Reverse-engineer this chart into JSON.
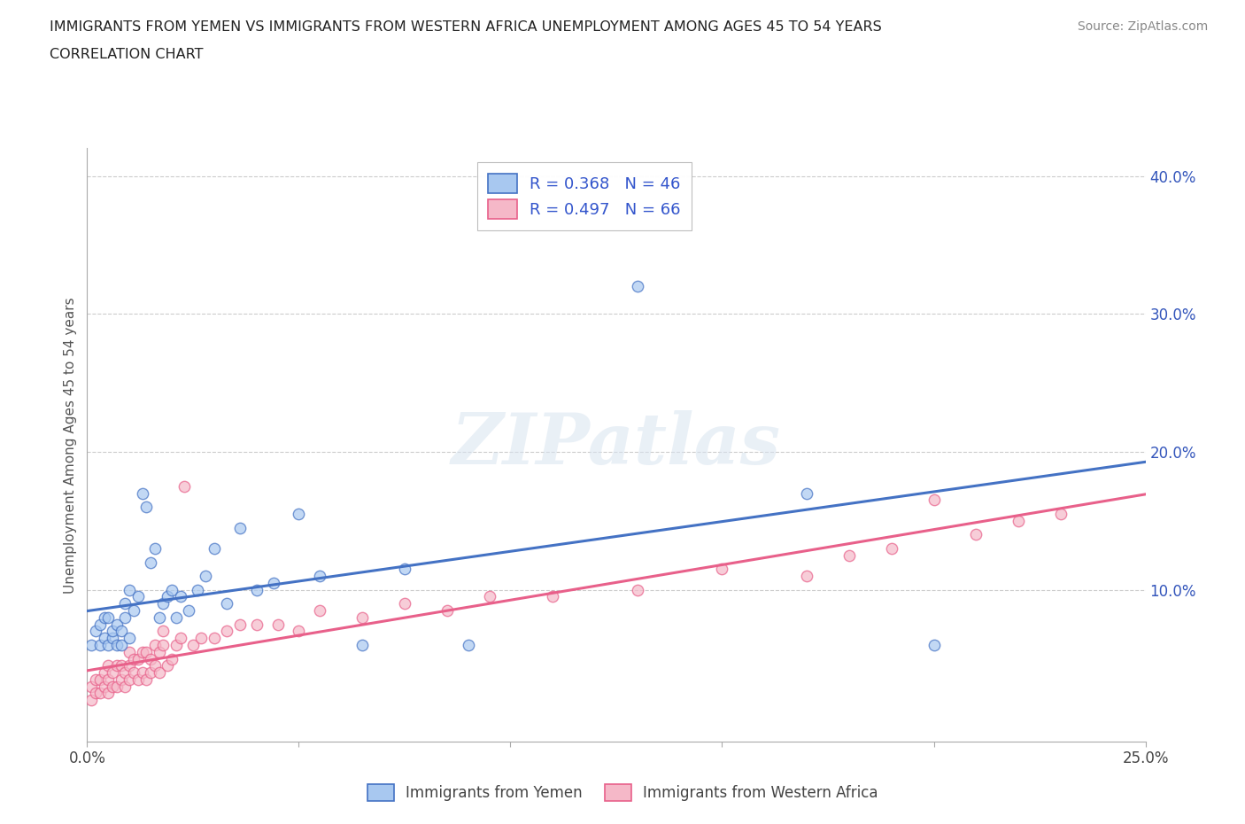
{
  "title_line1": "IMMIGRANTS FROM YEMEN VS IMMIGRANTS FROM WESTERN AFRICA UNEMPLOYMENT AMONG AGES 45 TO 54 YEARS",
  "title_line2": "CORRELATION CHART",
  "source": "Source: ZipAtlas.com",
  "ylabel": "Unemployment Among Ages 45 to 54 years",
  "xlim": [
    0.0,
    0.25
  ],
  "ylim": [
    -0.01,
    0.42
  ],
  "xticks": [
    0.0,
    0.05,
    0.1,
    0.15,
    0.2,
    0.25
  ],
  "xticklabels": [
    "0.0%",
    "",
    "",
    "",
    "",
    "25.0%"
  ],
  "yticks": [
    0.1,
    0.2,
    0.3,
    0.4
  ],
  "yticklabels": [
    "10.0%",
    "20.0%",
    "30.0%",
    "40.0%"
  ],
  "color_yemen": "#a8c8f0",
  "color_west_africa": "#f5b8c8",
  "color_line_yemen": "#4472c4",
  "color_line_west_africa": "#e8608a",
  "watermark": "ZIPatlas",
  "yemen_x": [
    0.001,
    0.002,
    0.003,
    0.003,
    0.004,
    0.004,
    0.005,
    0.005,
    0.006,
    0.006,
    0.007,
    0.007,
    0.008,
    0.008,
    0.009,
    0.009,
    0.01,
    0.01,
    0.011,
    0.012,
    0.013,
    0.014,
    0.015,
    0.016,
    0.017,
    0.018,
    0.019,
    0.02,
    0.021,
    0.022,
    0.024,
    0.026,
    0.028,
    0.03,
    0.033,
    0.036,
    0.04,
    0.044,
    0.05,
    0.055,
    0.065,
    0.075,
    0.09,
    0.13,
    0.17,
    0.2
  ],
  "yemen_y": [
    0.06,
    0.07,
    0.06,
    0.075,
    0.065,
    0.08,
    0.06,
    0.08,
    0.065,
    0.07,
    0.06,
    0.075,
    0.07,
    0.06,
    0.08,
    0.09,
    0.065,
    0.1,
    0.085,
    0.095,
    0.17,
    0.16,
    0.12,
    0.13,
    0.08,
    0.09,
    0.095,
    0.1,
    0.08,
    0.095,
    0.085,
    0.1,
    0.11,
    0.13,
    0.09,
    0.145,
    0.1,
    0.105,
    0.155,
    0.11,
    0.06,
    0.115,
    0.06,
    0.32,
    0.17,
    0.06
  ],
  "wafrica_x": [
    0.001,
    0.001,
    0.002,
    0.002,
    0.003,
    0.003,
    0.004,
    0.004,
    0.005,
    0.005,
    0.005,
    0.006,
    0.006,
    0.007,
    0.007,
    0.008,
    0.008,
    0.009,
    0.009,
    0.01,
    0.01,
    0.01,
    0.011,
    0.011,
    0.012,
    0.012,
    0.013,
    0.013,
    0.014,
    0.014,
    0.015,
    0.015,
    0.016,
    0.016,
    0.017,
    0.017,
    0.018,
    0.018,
    0.019,
    0.02,
    0.021,
    0.022,
    0.023,
    0.025,
    0.027,
    0.03,
    0.033,
    0.036,
    0.04,
    0.045,
    0.05,
    0.055,
    0.065,
    0.075,
    0.085,
    0.095,
    0.11,
    0.13,
    0.15,
    0.17,
    0.18,
    0.19,
    0.2,
    0.21,
    0.22,
    0.23
  ],
  "wafrica_y": [
    0.02,
    0.03,
    0.025,
    0.035,
    0.025,
    0.035,
    0.03,
    0.04,
    0.025,
    0.035,
    0.045,
    0.03,
    0.04,
    0.03,
    0.045,
    0.035,
    0.045,
    0.03,
    0.04,
    0.035,
    0.045,
    0.055,
    0.04,
    0.05,
    0.035,
    0.05,
    0.04,
    0.055,
    0.035,
    0.055,
    0.04,
    0.05,
    0.045,
    0.06,
    0.04,
    0.055,
    0.06,
    0.07,
    0.045,
    0.05,
    0.06,
    0.065,
    0.175,
    0.06,
    0.065,
    0.065,
    0.07,
    0.075,
    0.075,
    0.075,
    0.07,
    0.085,
    0.08,
    0.09,
    0.085,
    0.095,
    0.095,
    0.1,
    0.115,
    0.11,
    0.125,
    0.13,
    0.165,
    0.14,
    0.15,
    0.155
  ],
  "legend_label1": "R = 0.368   N = 46",
  "legend_label2": "R = 0.497   N = 66",
  "bottom_legend1": "Immigrants from Yemen",
  "bottom_legend2": "Immigrants from Western Africa"
}
